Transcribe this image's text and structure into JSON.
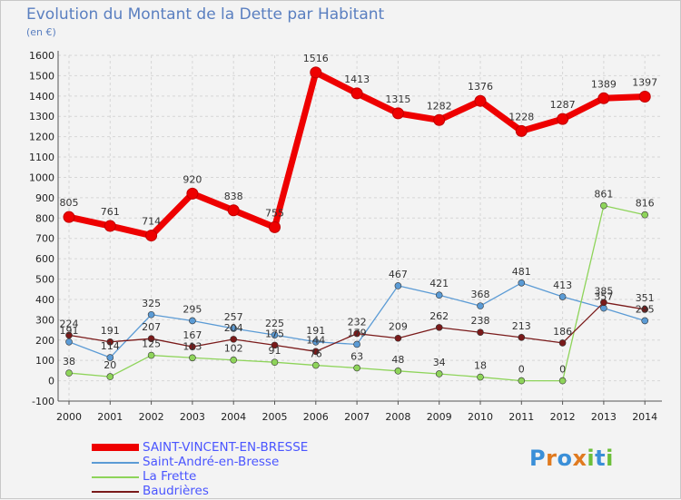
{
  "title": "Evolution du Montant de la Dette par Habitant",
  "subtitle": "(en €)",
  "logo": {
    "letters": [
      "P",
      "r",
      "o",
      "x",
      "i",
      "t",
      "i"
    ],
    "colors": [
      "#3a8fd8",
      "#e07a1f",
      "#3a8fd8",
      "#e07a1f",
      "#6cbf3a",
      "#3a8fd8",
      "#6cbf3a"
    ]
  },
  "chart_data": {
    "type": "line",
    "x": [
      "2000",
      "2001",
      "2002",
      "2003",
      "2004",
      "2005",
      "2006",
      "2007",
      "2008",
      "2009",
      "2010",
      "2011",
      "2012",
      "2013",
      "2014"
    ],
    "ylim": [
      -100,
      1600
    ],
    "yticks": [
      "-100",
      "0",
      "100",
      "200",
      "300",
      "400",
      "500",
      "600",
      "700",
      "800",
      "900",
      "1000",
      "1100",
      "1200",
      "1300",
      "1400",
      "1500",
      "1600"
    ],
    "grid": true,
    "legend_position": "bottom",
    "series": [
      {
        "name": "SAINT-VINCENT-EN-BRESSE",
        "color": "#ee0000",
        "values": [
          805,
          761,
          714,
          920,
          838,
          755,
          1516,
          1413,
          1315,
          1282,
          1376,
          1228,
          1287,
          1389,
          1397
        ],
        "labels": [
          "805",
          "761",
          "714",
          "920",
          "838",
          "755",
          "1516",
          "1413",
          "1315",
          "1282",
          "1376",
          "1228",
          "1287",
          "1389",
          "1397"
        ]
      },
      {
        "name": "Saint-André-en-Bresse",
        "color": "#5b9bd5",
        "values": [
          191,
          114,
          325,
          295,
          257,
          225,
          191,
          179,
          467,
          421,
          368,
          481,
          413,
          357,
          295
        ],
        "labels": [
          "191",
          "114",
          "325",
          "295",
          "257",
          "225",
          "191",
          "179",
          "467",
          "421",
          "368",
          "481",
          "413",
          "357",
          "295"
        ]
      },
      {
        "name": "La Frette",
        "color": "#8ed45a",
        "values": [
          38,
          20,
          125,
          113,
          102,
          91,
          76,
          63,
          48,
          34,
          18,
          0,
          0,
          861,
          816
        ],
        "labels": [
          "38",
          "20",
          "125",
          "113",
          "102",
          "91",
          "76",
          "63",
          "48",
          "34",
          "18",
          "0",
          "0",
          "861",
          "816"
        ]
      },
      {
        "name": "Baudrières",
        "color": "#7a1a1a",
        "values": [
          224,
          191,
          207,
          167,
          204,
          175,
          144,
          232,
          209,
          262,
          238,
          213,
          186,
          385,
          351
        ],
        "labels": [
          "224",
          "191",
          "207",
          "167",
          "204",
          "175",
          "144",
          "232",
          "209",
          "262",
          "238",
          "213",
          "186",
          "385",
          "351"
        ]
      }
    ]
  }
}
